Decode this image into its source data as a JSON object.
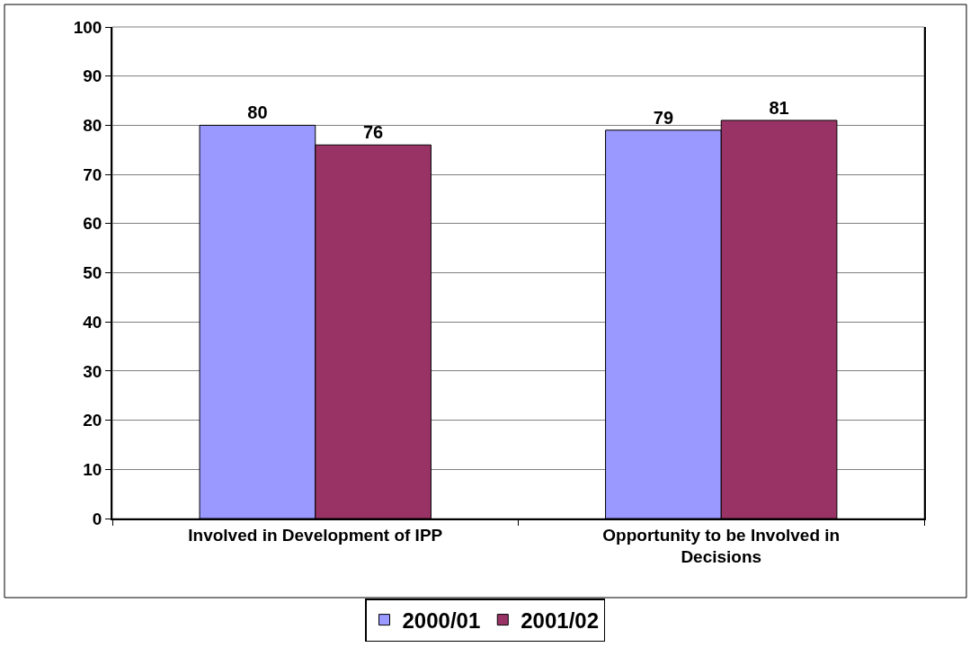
{
  "chart_data": {
    "type": "bar",
    "categories": [
      "Involved in Development of IPP",
      "Opportunity to be Involved in Decisions"
    ],
    "series": [
      {
        "name": "2000/01",
        "color": "#9999ff",
        "values": [
          80,
          79
        ]
      },
      {
        "name": "2001/02",
        "color": "#993366",
        "values": [
          76,
          81
        ]
      }
    ],
    "ylim": [
      0,
      100
    ],
    "yticks": [
      0,
      10,
      20,
      30,
      40,
      50,
      60,
      70,
      80,
      90,
      100
    ],
    "grid": "y",
    "legend": "bottom",
    "data_labels": true
  }
}
